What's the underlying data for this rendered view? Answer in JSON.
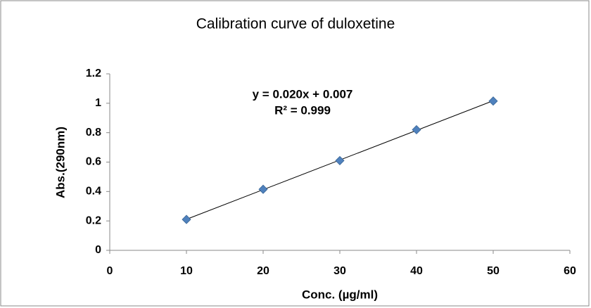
{
  "chart_data": {
    "type": "scatter",
    "title": "Calibration curve of duloxetine",
    "x_label": "Conc. (µg/ml)",
    "y_label": "Abs.(290nm)",
    "annotations": [
      "y = 0.020x + 0.007",
      "R² = 0.999"
    ],
    "series": [
      {
        "name": "Abs.",
        "color": "#4f81bd",
        "x": [
          10,
          20,
          30,
          40,
          50
        ],
        "values": [
          0.21,
          0.415,
          0.61,
          0.82,
          1.015
        ]
      }
    ],
    "trendline": "linear",
    "xlim": [
      0,
      60
    ],
    "xticks": [
      0,
      10,
      20,
      30,
      40,
      50,
      60
    ],
    "ylim": [
      0,
      1.2
    ],
    "yticks": [
      0,
      0.2,
      0.4,
      0.6,
      0.8,
      1,
      1.2
    ],
    "grid": false
  }
}
